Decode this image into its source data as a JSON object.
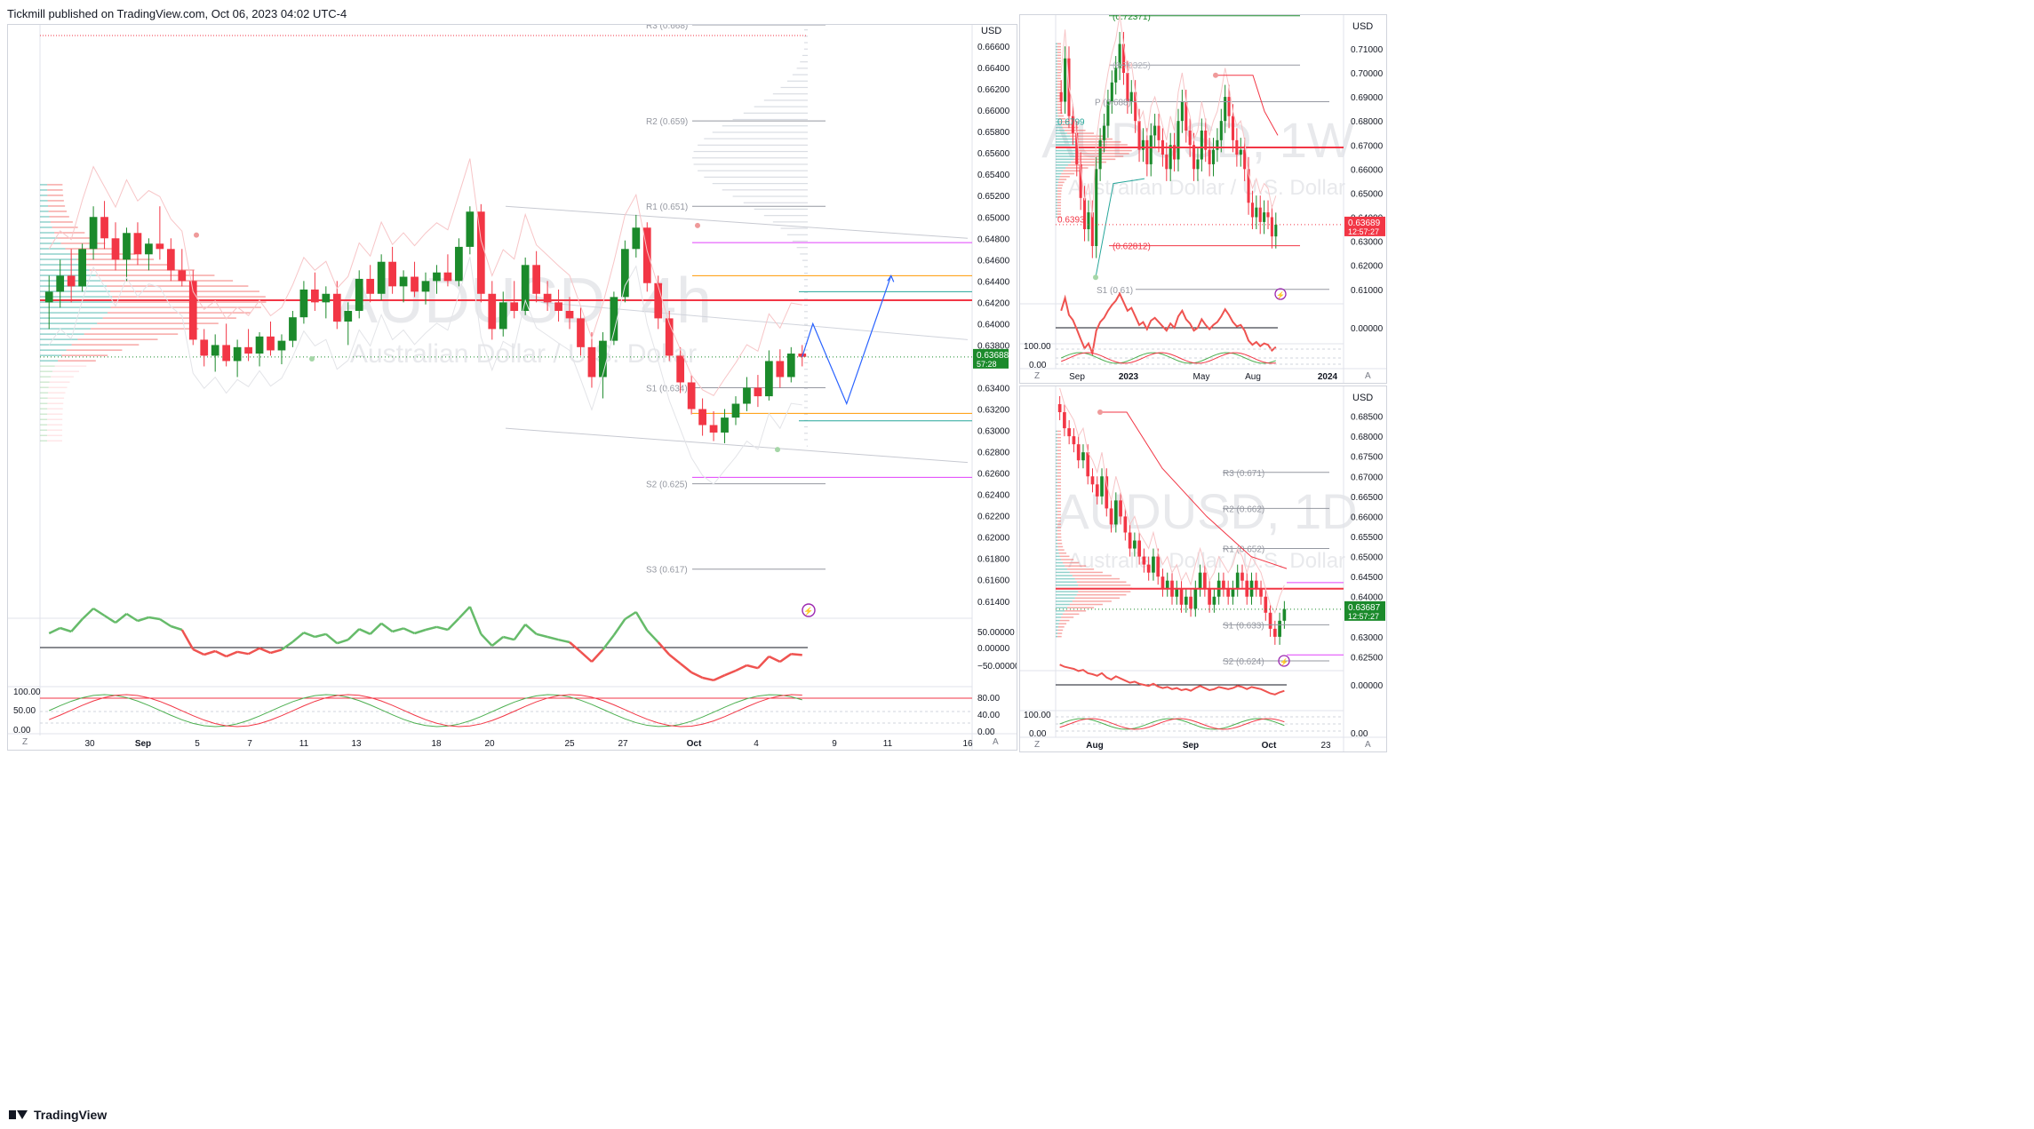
{
  "header": {
    "publisher_line": "Tickmill published on TradingView.com, Oct 06, 2023 04:02 UTC-4"
  },
  "footer": {
    "brand": "TradingView"
  },
  "colors": {
    "up": "#26a69a",
    "up_body": "#1b8a2b",
    "down": "#f23645",
    "blue": "#2962ff",
    "purple": "#9c27b0",
    "orange": "#ff9800",
    "grey": "#9598a1"
  },
  "main": {
    "watermark_symbol": "AUDUSD, 4h",
    "watermark_desc": "Australian Dollar / U.S. Dollar",
    "currency": "USD",
    "price_ticks": [
      "0.66600",
      "0.66400",
      "0.66200",
      "0.66000",
      "0.65800",
      "0.65600",
      "0.65400",
      "0.65200",
      "0.65000",
      "0.64800",
      "0.64600",
      "0.64400",
      "0.64200",
      "0.64000",
      "0.63800",
      "0.63400",
      "0.63200",
      "0.63000",
      "0.62800",
      "0.62600",
      "0.62400",
      "0.62200",
      "0.62000",
      "0.61800",
      "0.61600",
      "0.61400"
    ],
    "last_price": "0.63688",
    "countdown": "57:28",
    "pivots": [
      "R3 (0.668)",
      "R2 (0.659)",
      "R1 (0.651)",
      "S1 (0.634)",
      "S2 (0.625)",
      "S3 (0.617)"
    ],
    "date_labels": [
      "30",
      "Sep",
      "5",
      "7",
      "11",
      "13",
      "18",
      "20",
      "25",
      "27",
      "Oct",
      "4",
      "9",
      "11",
      "16"
    ],
    "osc1_ticks": [
      "50.00000",
      "0.00000",
      "−50.00000"
    ],
    "osc2_left_ticks": [
      "100.00",
      "50.00",
      "0.00"
    ],
    "osc2_right_ticks": [
      "80.00",
      "40.00",
      "0.00"
    ],
    "corner_left": "Z",
    "corner_right": "A"
  },
  "weekly": {
    "watermark_symbol": "AUDUSD, 1W",
    "watermark_desc": "Australian Dollar / U.S. Dollar",
    "currency": "USD",
    "price_ticks": [
      "0.71000",
      "0.70000",
      "0.69000",
      "0.68000",
      "0.67000",
      "0.66000",
      "0.65000",
      "0.64000",
      "0.63000",
      "0.62000",
      "0.61000"
    ],
    "last_price": "0.63689",
    "countdown": "12:57:27",
    "level_labels": [
      "(0.72371)",
      "(0.70325)",
      "P (0.688)",
      "0.6799",
      "0.6393",
      "(0.62812)",
      "S1 (0.61)"
    ],
    "osc1_ticks": [
      "0.00000"
    ],
    "osc2_left_ticks": [
      "100.00",
      "0.00"
    ],
    "date_labels": [
      "Sep",
      "2023",
      "May",
      "Aug",
      "2024"
    ],
    "corner_left": "Z",
    "corner_right": "A"
  },
  "daily": {
    "watermark_symbol": "AUDUSD, 1D",
    "watermark_desc": "Australian Dollar / U.S. Dollar",
    "currency": "USD",
    "price_ticks": [
      "0.68500",
      "0.68000",
      "0.67500",
      "0.67000",
      "0.66500",
      "0.66000",
      "0.65500",
      "0.65000",
      "0.64500",
      "0.64000",
      "0.63500",
      "0.63000",
      "0.62500"
    ],
    "last_price": "0.63687",
    "countdown": "12:57:27",
    "pivots": [
      "R3 (0.671)",
      "R2 (0.662)",
      "R1 (0.652)",
      "S1 (0.633)",
      "S2 (0.624)"
    ],
    "osc1_ticks": [
      "0.00000"
    ],
    "osc2_left_ticks": [
      "100.00",
      "0.00"
    ],
    "osc2_right_ticks": [
      "0.00"
    ],
    "date_labels": [
      "Aug",
      "Sep",
      "Oct",
      "23"
    ],
    "corner_left": "Z",
    "corner_right": "A"
  },
  "chart_data": [
    {
      "type": "candlestick",
      "title": "AUDUSD, 4h",
      "ylim": [
        0.6124,
        0.668
      ],
      "y_unit": "USD",
      "x_range": [
        "Aug 29 2023",
        "Oct 16 2023"
      ],
      "candles_ohlc": [
        [
          0.642,
          0.6445,
          0.6395,
          0.643
        ],
        [
          0.643,
          0.646,
          0.6415,
          0.6445
        ],
        [
          0.6445,
          0.647,
          0.642,
          0.6435
        ],
        [
          0.6435,
          0.6475,
          0.643,
          0.647
        ],
        [
          0.647,
          0.651,
          0.646,
          0.65
        ],
        [
          0.65,
          0.6515,
          0.647,
          0.648
        ],
        [
          0.648,
          0.6495,
          0.645,
          0.646
        ],
        [
          0.646,
          0.649,
          0.644,
          0.6485
        ],
        [
          0.6485,
          0.6495,
          0.6455,
          0.6465
        ],
        [
          0.6465,
          0.648,
          0.645,
          0.6475
        ],
        [
          0.6475,
          0.651,
          0.646,
          0.647
        ],
        [
          0.647,
          0.648,
          0.644,
          0.645
        ],
        [
          0.645,
          0.647,
          0.6435,
          0.644
        ],
        [
          0.644,
          0.645,
          0.638,
          0.6385
        ],
        [
          0.6385,
          0.6395,
          0.636,
          0.637
        ],
        [
          0.637,
          0.639,
          0.6355,
          0.638
        ],
        [
          0.638,
          0.64,
          0.636,
          0.6365
        ],
        [
          0.6365,
          0.6385,
          0.635,
          0.6378
        ],
        [
          0.6378,
          0.6395,
          0.6365,
          0.6372
        ],
        [
          0.6372,
          0.6392,
          0.636,
          0.6388
        ],
        [
          0.6388,
          0.6402,
          0.637,
          0.6375
        ],
        [
          0.6375,
          0.639,
          0.6362,
          0.6384
        ],
        [
          0.6384,
          0.6412,
          0.6378,
          0.6406
        ],
        [
          0.6406,
          0.644,
          0.64,
          0.6432
        ],
        [
          0.6432,
          0.6448,
          0.6412,
          0.642
        ],
        [
          0.642,
          0.6435,
          0.6405,
          0.6428
        ],
        [
          0.6428,
          0.644,
          0.6395,
          0.6402
        ],
        [
          0.6402,
          0.642,
          0.638,
          0.6412
        ],
        [
          0.6412,
          0.645,
          0.6405,
          0.6442
        ],
        [
          0.6442,
          0.6455,
          0.642,
          0.6428
        ],
        [
          0.6428,
          0.6465,
          0.6422,
          0.6458
        ],
        [
          0.6458,
          0.6472,
          0.6428,
          0.6435
        ],
        [
          0.6435,
          0.645,
          0.642,
          0.6444
        ],
        [
          0.6444,
          0.6458,
          0.6425,
          0.643
        ],
        [
          0.643,
          0.6448,
          0.6418,
          0.644
        ],
        [
          0.644,
          0.6455,
          0.6428,
          0.6448
        ],
        [
          0.6448,
          0.6465,
          0.6435,
          0.644
        ],
        [
          0.644,
          0.648,
          0.6435,
          0.6472
        ],
        [
          0.6472,
          0.651,
          0.6465,
          0.6505
        ],
        [
          0.6505,
          0.6512,
          0.642,
          0.6428
        ],
        [
          0.6428,
          0.644,
          0.6385,
          0.6395
        ],
        [
          0.6395,
          0.643,
          0.6388,
          0.642
        ],
        [
          0.642,
          0.644,
          0.6405,
          0.6412
        ],
        [
          0.6412,
          0.6462,
          0.6408,
          0.6455
        ],
        [
          0.6455,
          0.6468,
          0.642,
          0.6428
        ],
        [
          0.6428,
          0.644,
          0.6412,
          0.642
        ],
        [
          0.642,
          0.6432,
          0.6402,
          0.6412
        ],
        [
          0.6412,
          0.6425,
          0.6395,
          0.6405
        ],
        [
          0.6405,
          0.6415,
          0.637,
          0.6378
        ],
        [
          0.6378,
          0.6392,
          0.634,
          0.635
        ],
        [
          0.635,
          0.6392,
          0.633,
          0.6384
        ],
        [
          0.6384,
          0.643,
          0.638,
          0.6425
        ],
        [
          0.6425,
          0.6478,
          0.642,
          0.647
        ],
        [
          0.647,
          0.6502,
          0.6462,
          0.649
        ],
        [
          0.649,
          0.6495,
          0.643,
          0.6438
        ],
        [
          0.6438,
          0.6445,
          0.6395,
          0.6405
        ],
        [
          0.6405,
          0.6412,
          0.6365,
          0.637
        ],
        [
          0.637,
          0.6378,
          0.6335,
          0.6345
        ],
        [
          0.6345,
          0.6352,
          0.6315,
          0.632
        ],
        [
          0.632,
          0.633,
          0.6295,
          0.6305
        ],
        [
          0.6305,
          0.6318,
          0.629,
          0.6298
        ],
        [
          0.6298,
          0.632,
          0.6288,
          0.6312
        ],
        [
          0.6312,
          0.6332,
          0.6305,
          0.6325
        ],
        [
          0.6325,
          0.635,
          0.6318,
          0.634
        ],
        [
          0.634,
          0.6352,
          0.6322,
          0.6332
        ],
        [
          0.6332,
          0.6375,
          0.6328,
          0.6365
        ],
        [
          0.6365,
          0.6376,
          0.634,
          0.635
        ],
        [
          0.635,
          0.6378,
          0.6345,
          0.6372
        ],
        [
          0.6372,
          0.638,
          0.636,
          0.6369
        ]
      ],
      "pivot_levels": {
        "R3": 0.668,
        "R2": 0.659,
        "R1": 0.651,
        "S1": 0.634,
        "S2": 0.625,
        "S3": 0.617
      },
      "horizontal_lines": {
        "red": 0.6422,
        "orange_top": 0.6445,
        "orange_bottom": 0.6316,
        "purple_top": 0.6476,
        "purple_bottom": 0.6256,
        "green_top": 0.643,
        "green_bottom": 0.6309
      },
      "projection_path": [
        [
          0.6369
        ],
        [
          0.64
        ],
        [
          0.6325
        ],
        [
          0.6445
        ]
      ]
    },
    {
      "type": "candlestick",
      "title": "AUDUSD, 1W",
      "ylim": [
        0.604,
        0.724
      ],
      "x_labels": [
        "Sep",
        "2023",
        "May",
        "Aug",
        "2024"
      ],
      "close_series": [
        0.688,
        0.706,
        0.682,
        0.675,
        0.662,
        0.648,
        0.635,
        0.642,
        0.628,
        0.66,
        0.672,
        0.678,
        0.688,
        0.696,
        0.702,
        0.712,
        0.7,
        0.688,
        0.692,
        0.68,
        0.668,
        0.672,
        0.662,
        0.674,
        0.678,
        0.672,
        0.666,
        0.66,
        0.67,
        0.664,
        0.68,
        0.688,
        0.676,
        0.67,
        0.66,
        0.664,
        0.676,
        0.668,
        0.662,
        0.668,
        0.672,
        0.68,
        0.69,
        0.682,
        0.672,
        0.666,
        0.668,
        0.66,
        0.646,
        0.64,
        0.644,
        0.638,
        0.642,
        0.64,
        0.632,
        0.6369
      ]
    },
    {
      "type": "candlestick",
      "title": "AUDUSD, 1D",
      "ylim": [
        0.622,
        0.688
      ],
      "x_labels": [
        "Aug",
        "Sep",
        "Oct",
        "23"
      ],
      "close_series": [
        0.686,
        0.682,
        0.68,
        0.678,
        0.674,
        0.676,
        0.67,
        0.668,
        0.665,
        0.67,
        0.662,
        0.658,
        0.664,
        0.66,
        0.656,
        0.652,
        0.654,
        0.65,
        0.648,
        0.646,
        0.65,
        0.645,
        0.642,
        0.644,
        0.64,
        0.642,
        0.638,
        0.64,
        0.637,
        0.642,
        0.646,
        0.642,
        0.638,
        0.64,
        0.644,
        0.642,
        0.64,
        0.642,
        0.646,
        0.644,
        0.64,
        0.644,
        0.642,
        0.64,
        0.636,
        0.632,
        0.63,
        0.634,
        0.6369
      ]
    }
  ]
}
